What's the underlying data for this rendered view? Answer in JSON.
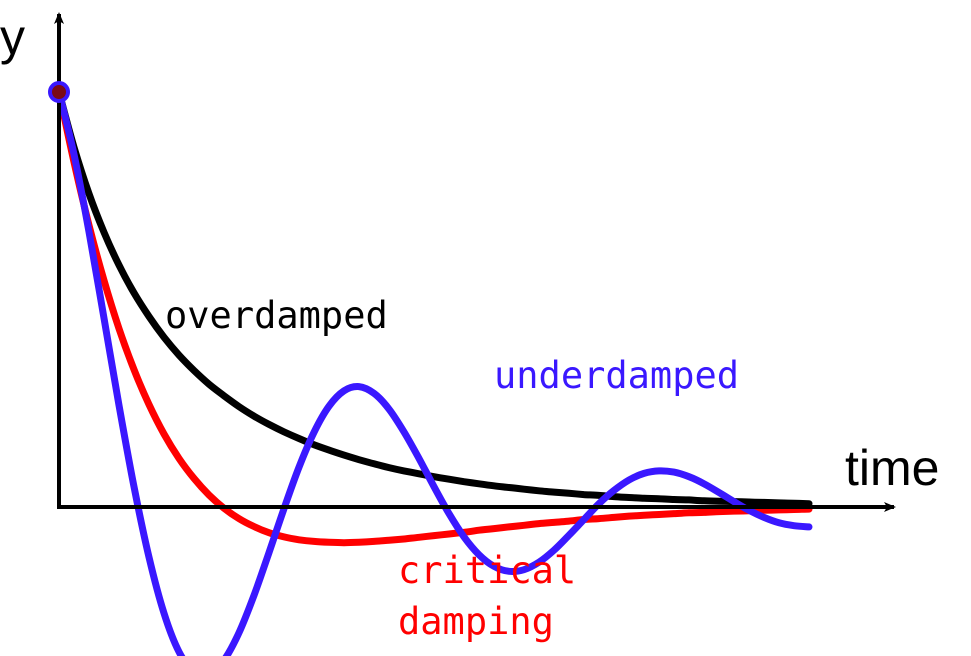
{
  "chart_data": {
    "type": "line",
    "title": "",
    "xlabel": "time",
    "ylabel": "y",
    "xlim": [
      0,
      5.1
    ],
    "ylim": [
      -0.36,
      1.05
    ],
    "grid": false,
    "legend": "none",
    "initial_point": {
      "x": 0,
      "y": 1.0,
      "fill": "#7a0a18",
      "stroke": "#3a18ff"
    },
    "series": [
      {
        "name": "overdamped",
        "color": "#000000",
        "x": [
          0,
          0.1,
          0.2,
          0.3,
          0.4,
          0.5,
          0.6,
          0.7,
          0.8,
          0.9,
          1.0,
          1.1,
          1.2,
          1.3,
          1.4,
          1.5,
          1.6,
          1.7,
          1.8,
          1.9,
          2.0,
          2.1,
          2.2,
          2.3,
          2.4,
          2.5,
          2.6,
          2.7,
          2.8,
          2.9,
          3.0,
          3.1,
          3.2,
          3.3,
          3.4,
          3.5,
          3.6,
          3.7,
          3.8,
          3.9,
          4.0,
          4.1,
          4.2,
          4.3,
          4.4,
          4.5,
          4.6,
          4.7,
          4.8,
          4.9,
          5.0
        ],
        "values": [
          1.0,
          0.867,
          0.755,
          0.662,
          0.583,
          0.516,
          0.459,
          0.409,
          0.366,
          0.329,
          0.296,
          0.268,
          0.242,
          0.219,
          0.199,
          0.181,
          0.165,
          0.15,
          0.137,
          0.125,
          0.114,
          0.104,
          0.095,
          0.087,
          0.08,
          0.073,
          0.067,
          0.061,
          0.056,
          0.051,
          0.047,
          0.043,
          0.039,
          0.036,
          0.033,
          0.03,
          0.028,
          0.025,
          0.023,
          0.021,
          0.02,
          0.018,
          0.017,
          0.015,
          0.014,
          0.013,
          0.012,
          0.011,
          0.01,
          0.009,
          0.008
        ]
      },
      {
        "name": "critical damping",
        "color": "#ff0000",
        "x": [
          0,
          0.1,
          0.2,
          0.3,
          0.4,
          0.5,
          0.6,
          0.7,
          0.8,
          0.9,
          1.0,
          1.1,
          1.2,
          1.3,
          1.4,
          1.5,
          1.6,
          1.7,
          1.8,
          1.9,
          2.0,
          2.1,
          2.2,
          2.3,
          2.4,
          2.5,
          2.6,
          2.7,
          2.8,
          2.9,
          3.0,
          3.1,
          3.2,
          3.3,
          3.4,
          3.5,
          3.6,
          3.7,
          3.8,
          3.9,
          4.0,
          4.1,
          4.2,
          4.3,
          4.4,
          4.5,
          4.6,
          4.7,
          4.8,
          4.9,
          5.0
        ],
        "values": [
          1.0,
          0.831,
          0.679,
          0.546,
          0.43,
          0.331,
          0.247,
          0.176,
          0.117,
          0.069,
          0.029,
          -0.003,
          -0.028,
          -0.047,
          -0.062,
          -0.072,
          -0.079,
          -0.083,
          -0.085,
          -0.086,
          -0.085,
          -0.083,
          -0.08,
          -0.077,
          -0.073,
          -0.069,
          -0.065,
          -0.061,
          -0.056,
          -0.052,
          -0.048,
          -0.044,
          -0.04,
          -0.037,
          -0.034,
          -0.03,
          -0.028,
          -0.025,
          -0.022,
          -0.02,
          -0.018,
          -0.016,
          -0.014,
          -0.013,
          -0.011,
          -0.01,
          -0.009,
          -0.008,
          -0.007,
          -0.006,
          -0.005
        ]
      },
      {
        "name": "underdamped",
        "color": "#3a18ff",
        "x": [
          0,
          0.1,
          0.2,
          0.3,
          0.4,
          0.5,
          0.6,
          0.7,
          0.8,
          0.9,
          1.0,
          1.1,
          1.2,
          1.3,
          1.4,
          1.5,
          1.6,
          1.7,
          1.8,
          1.9,
          2.0,
          2.1,
          2.2,
          2.3,
          2.4,
          2.5,
          2.6,
          2.7,
          2.8,
          2.9,
          3.0,
          3.1,
          3.2,
          3.3,
          3.4,
          3.5,
          3.6,
          3.7,
          3.8,
          3.9,
          4.0,
          4.1,
          4.2,
          4.3,
          4.4,
          4.5,
          4.6,
          4.7,
          4.8,
          4.9,
          5.0
        ],
        "values": [
          1.0,
          0.85,
          0.663,
          0.455,
          0.245,
          0.049,
          -0.121,
          -0.256,
          -0.349,
          -0.397,
          -0.402,
          -0.369,
          -0.303,
          -0.213,
          -0.11,
          -0.004,
          0.096,
          0.18,
          0.243,
          0.28,
          0.29,
          0.274,
          0.236,
          0.181,
          0.117,
          0.049,
          -0.016,
          -0.072,
          -0.115,
          -0.143,
          -0.155,
          -0.151,
          -0.133,
          -0.104,
          -0.068,
          -0.03,
          0.008,
          0.04,
          0.065,
          0.081,
          0.087,
          0.084,
          0.073,
          0.056,
          0.035,
          0.013,
          -0.008,
          -0.025,
          -0.038,
          -0.045,
          -0.048
        ]
      }
    ]
  }
}
